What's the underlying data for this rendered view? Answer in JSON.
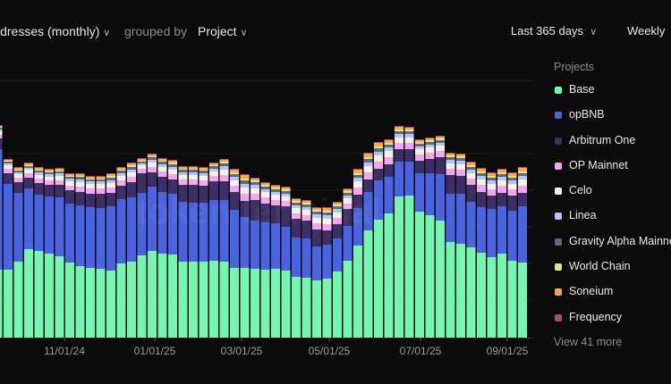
{
  "header": {
    "metric_label": "ldresses (monthly)",
    "grouped_by_label": "grouped by",
    "group_value": "Project",
    "range_label": "Last 365 days",
    "granularity_label": "Weekly"
  },
  "watermark": "token terminal_",
  "legend": {
    "title": "Projects",
    "items": [
      {
        "label": "Base",
        "color": "#74f5b0"
      },
      {
        "label": "opBNB",
        "color": "#4a63e0"
      },
      {
        "label": "Arbitrum One",
        "color": "#3d2f66"
      },
      {
        "label": "OP Mainnet",
        "color": "#f2a6f0"
      },
      {
        "label": "Celo",
        "color": "#f4f1e4"
      },
      {
        "label": "Linea",
        "color": "#b4c4f7"
      },
      {
        "label": "Gravity Alpha Mainnet",
        "color": "#5d6a86"
      },
      {
        "label": "World Chain",
        "color": "#f0e07a"
      },
      {
        "label": "Soneium",
        "color": "#f5aa4a"
      },
      {
        "label": "Frequency",
        "color": "#a84a7e"
      }
    ],
    "more_label": "View 41 more"
  },
  "chart_data": {
    "type": "bar",
    "stacked": true,
    "grid": true,
    "legend_position": "right",
    "ylim": [
      0,
      288
    ],
    "x_tick_labels": [
      "11/01/24",
      "01/01/25",
      "03/01/25",
      "05/01/25",
      "07/01/25",
      "09/01/25"
    ],
    "series": [
      {
        "name": "Base",
        "values": [
          76,
          76,
          85,
          99,
          97,
          94,
          91,
          84,
          80,
          78,
          77,
          75,
          83,
          85,
          92,
          97,
          94,
          93,
          85,
          85,
          85,
          86,
          85,
          78,
          78,
          77,
          76,
          77,
          75,
          68,
          67,
          64,
          66,
          74,
          86,
          103,
          120,
          132,
          139,
          158,
          159,
          141,
          137,
          131,
          107,
          105,
          101,
          95,
          90,
          94,
          86,
          84
        ]
      },
      {
        "name": "opBNB",
        "values": [
          135,
          96,
          77,
          68,
          63,
          64,
          66,
          66,
          68,
          68,
          68,
          72,
          72,
          72,
          70,
          72,
          69,
          68,
          67,
          66,
          66,
          68,
          69,
          65,
          57,
          54,
          53,
          51,
          49,
          44,
          44,
          38,
          38,
          37,
          39,
          42,
          43,
          44,
          41,
          39,
          38,
          43,
          47,
          52,
          54,
          56,
          51,
          51,
          54,
          53,
          56,
          63
        ]
      },
      {
        "name": "Arbitrum One",
        "values": [
          12,
          12,
          12,
          12,
          13,
          13,
          14,
          15,
          15,
          15,
          16,
          15,
          15,
          17,
          22,
          16,
          17,
          16,
          19,
          20,
          19,
          21,
          21,
          20,
          18,
          23,
          21,
          20,
          23,
          21,
          20,
          19,
          16,
          16,
          19,
          15,
          14,
          13,
          14,
          14,
          14,
          14,
          16,
          19,
          21,
          20,
          19,
          17,
          15,
          15,
          17,
          15
        ]
      },
      {
        "name": "OP Mainnet",
        "values": [
          4,
          5,
          5,
          5,
          5,
          5,
          5,
          5,
          6,
          6,
          6,
          6,
          6,
          6,
          5,
          6,
          6,
          6,
          6,
          6,
          6,
          6,
          7,
          7,
          8,
          7,
          7,
          6,
          6,
          6,
          6,
          7,
          7,
          7,
          6,
          8,
          8,
          8,
          8,
          7,
          7,
          7,
          7,
          7,
          7,
          7,
          7,
          8,
          7,
          8,
          7,
          8
        ]
      },
      {
        "name": "Celo",
        "values": [
          4,
          4,
          4,
          4,
          4,
          4,
          5,
          5,
          5,
          5,
          5,
          5,
          5,
          5,
          4,
          5,
          5,
          5,
          5,
          5,
          5,
          5,
          6,
          6,
          7,
          6,
          6,
          6,
          5,
          6,
          6,
          6,
          6,
          6,
          6,
          7,
          7,
          7,
          7,
          6,
          6,
          6,
          6,
          6,
          6,
          6,
          6,
          6,
          6,
          6,
          6,
          7
        ]
      },
      {
        "name": "Linea",
        "values": [
          2,
          2,
          2,
          2,
          3,
          3,
          3,
          3,
          3,
          3,
          3,
          3,
          3,
          3,
          2,
          3,
          3,
          3,
          3,
          3,
          3,
          3,
          4,
          4,
          4,
          4,
          3,
          3,
          3,
          3,
          3,
          4,
          4,
          4,
          3,
          4,
          4,
          4,
          4,
          4,
          4,
          3,
          3,
          3,
          4,
          4,
          4,
          4,
          4,
          4,
          4,
          4
        ]
      },
      {
        "name": "Gravity Alpha Mainnet",
        "values": [
          2,
          2,
          2,
          2,
          2,
          2,
          2,
          2,
          3,
          2,
          2,
          3,
          3,
          3,
          2,
          3,
          3,
          3,
          3,
          3,
          3,
          3,
          3,
          3,
          4,
          3,
          3,
          3,
          3,
          3,
          3,
          3,
          3,
          3,
          3,
          3,
          4,
          4,
          3,
          3,
          3,
          3,
          3,
          3,
          3,
          3,
          3,
          3,
          3,
          3,
          3,
          3
        ]
      },
      {
        "name": "World Chain",
        "values": [
          1,
          1,
          1,
          1,
          1,
          1,
          1,
          1,
          1,
          1,
          1,
          2,
          1,
          2,
          1,
          1,
          1,
          2,
          1,
          1,
          1,
          1,
          2,
          2,
          2,
          2,
          2,
          2,
          2,
          2,
          2,
          2,
          2,
          2,
          2,
          2,
          2,
          2,
          2,
          2,
          2,
          2,
          2,
          2,
          2,
          2,
          2,
          2,
          2,
          2,
          2,
          2
        ]
      },
      {
        "name": "Soneium",
        "values": [
          1,
          1,
          2,
          2,
          2,
          2,
          2,
          2,
          2,
          2,
          2,
          2,
          2,
          2,
          2,
          2,
          2,
          2,
          2,
          2,
          2,
          2,
          2,
          3,
          4,
          2,
          2,
          2,
          2,
          2,
          2,
          2,
          3,
          2,
          2,
          4,
          4,
          4,
          3,
          3,
          2,
          2,
          2,
          2,
          2,
          2,
          3,
          3,
          3,
          3,
          3,
          4
        ]
      },
      {
        "name": "Frequency",
        "values": [
          1,
          1,
          1,
          1,
          1,
          1,
          1,
          1,
          1,
          1,
          1,
          1,
          1,
          1,
          1,
          1,
          1,
          1,
          1,
          1,
          1,
          1,
          1,
          1,
          1,
          1,
          1,
          1,
          1,
          1,
          1,
          1,
          1,
          1,
          1,
          1,
          1,
          1,
          1,
          1,
          1,
          1,
          1,
          1,
          1,
          1,
          1,
          1,
          1,
          1,
          1,
          1
        ]
      }
    ]
  }
}
